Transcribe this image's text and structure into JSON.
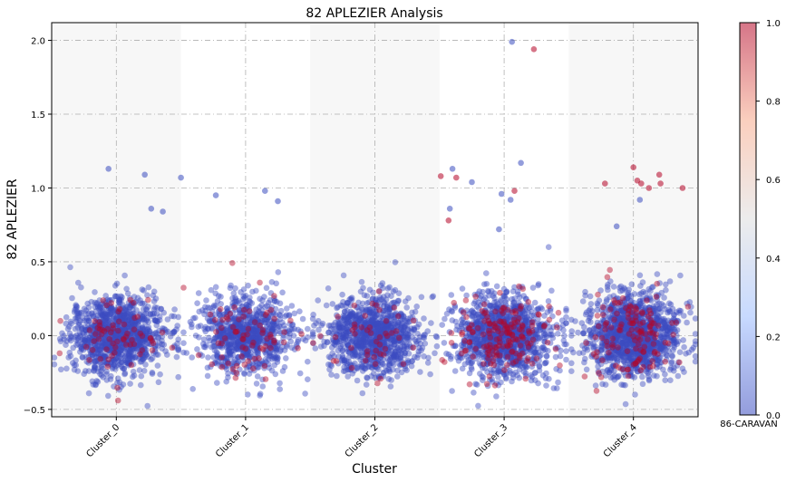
{
  "chart_data": {
    "type": "scatter",
    "title": "82 APLEZIER Analysis",
    "xlabel": "Cluster",
    "ylabel": "82 APLEZIER",
    "categories": [
      "Cluster_0",
      "Cluster_1",
      "Cluster_2",
      "Cluster_3",
      "Cluster_4"
    ],
    "ylim": [
      -0.55,
      2.12
    ],
    "yticks": [
      -0.5,
      0.0,
      0.5,
      1.0,
      1.5,
      2.0
    ],
    "ytick_labels": [
      "−0.5",
      "0.0",
      "0.5",
      "1.0",
      "1.5",
      "2.0"
    ],
    "grid": true,
    "jitter": 0.3,
    "colorbar": {
      "label": "86-CARAVAN",
      "range": [
        0.0,
        1.0
      ],
      "ticks": [
        0.0,
        0.2,
        0.4,
        0.6,
        0.8,
        1.0
      ],
      "tick_labels": [
        "0.0",
        "0.2",
        "0.4",
        "0.6",
        "0.8",
        "1.0"
      ],
      "colormap": "coolwarm",
      "colors": {
        "low": "#3b4cc0",
        "mid": "#dddddd",
        "high": "#b40426"
      }
    },
    "point_alpha": 0.45,
    "clusters": [
      {
        "name": "Cluster_0",
        "n": 1150,
        "y_spread": 0.13,
        "high_share": 0.05,
        "outliers": [
          {
            "x": -0.06,
            "y": 1.13,
            "z": 0.0
          },
          {
            "x": 0.22,
            "y": 1.09,
            "z": 0.0
          },
          {
            "x": 0.27,
            "y": 0.86,
            "z": 0.0
          },
          {
            "x": 0.36,
            "y": 0.84,
            "z": 0.0
          },
          {
            "x": 0.5,
            "y": 1.07,
            "z": 0.0
          }
        ]
      },
      {
        "name": "Cluster_1",
        "n": 900,
        "y_spread": 0.13,
        "high_share": 0.06,
        "outliers": [
          {
            "x": -0.23,
            "y": 0.95,
            "z": 0.0
          },
          {
            "x": 0.15,
            "y": 0.98,
            "z": 0.0
          },
          {
            "x": 0.25,
            "y": 0.91,
            "z": 0.0
          }
        ]
      },
      {
        "name": "Cluster_2",
        "n": 1050,
        "y_spread": 0.13,
        "high_share": 0.04,
        "outliers": [
          {
            "x": 0.51,
            "y": 1.08,
            "z": 1.0
          },
          {
            "x": 0.63,
            "y": 1.07,
            "z": 1.0
          },
          {
            "x": 0.57,
            "y": 0.78,
            "z": 1.0
          },
          {
            "x": 0.96,
            "y": 0.72,
            "z": 0.0
          }
        ]
      },
      {
        "name": "Cluster_3",
        "n": 1250,
        "y_spread": 0.14,
        "high_share": 0.12,
        "outliers": [
          {
            "x": -0.4,
            "y": 1.13,
            "z": 0.0
          },
          {
            "x": -0.25,
            "y": 1.04,
            "z": 0.0
          },
          {
            "x": -0.42,
            "y": 0.86,
            "z": 0.0
          },
          {
            "x": -0.02,
            "y": 0.96,
            "z": 0.0
          },
          {
            "x": 0.08,
            "y": 0.98,
            "z": 1.0
          },
          {
            "x": 0.13,
            "y": 1.17,
            "z": 0.0
          },
          {
            "x": 0.05,
            "y": 0.92,
            "z": 0.0
          },
          {
            "x": 0.06,
            "y": 1.99,
            "z": 0.0
          },
          {
            "x": 0.23,
            "y": 1.94,
            "z": 1.0
          }
        ]
      },
      {
        "name": "Cluster_4",
        "n": 1350,
        "y_spread": 0.14,
        "high_share": 0.1,
        "outliers": [
          {
            "x": -0.22,
            "y": 1.03,
            "z": 1.0
          },
          {
            "x": -0.13,
            "y": 0.74,
            "z": 0.0
          },
          {
            "x": 0.0,
            "y": 1.14,
            "z": 1.0
          },
          {
            "x": 0.03,
            "y": 1.05,
            "z": 1.0
          },
          {
            "x": 0.06,
            "y": 1.03,
            "z": 1.0
          },
          {
            "x": 0.12,
            "y": 1.0,
            "z": 1.0
          },
          {
            "x": 0.2,
            "y": 1.09,
            "z": 1.0
          },
          {
            "x": 0.21,
            "y": 1.03,
            "z": 1.0
          },
          {
            "x": 0.05,
            "y": 0.92,
            "z": 0.0
          },
          {
            "x": 0.38,
            "y": 1.0,
            "z": 1.0
          }
        ]
      }
    ]
  }
}
